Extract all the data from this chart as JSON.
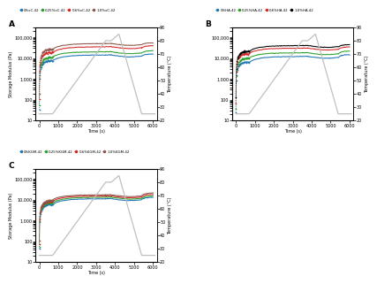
{
  "panels": [
    "A",
    "B",
    "C"
  ],
  "legend_A": [
    "0%xC-42",
    "0.25%xC-42",
    "0.6%xC-42",
    "1.0%xC-42"
  ],
  "legend_B": [
    "0%HA-42",
    "0.25%HA-42",
    "0.6%HA-42",
    "1.0%HA-42"
  ],
  "legend_C": [
    "0%KGM-42",
    "0.25%KGM-42",
    "0.6%KGM-42",
    "1.0%KGM-42"
  ],
  "colors_A": [
    "#1f77b4",
    "#2ca02c",
    "#d62728",
    "#8c564b"
  ],
  "colors_B": [
    "#1f77b4",
    "#2ca02c",
    "#d62728",
    "#000000"
  ],
  "colors_C": [
    "#1f77b4",
    "#2ca02c",
    "#d62728",
    "#8c564b"
  ],
  "temp_color": "#c0c0c0",
  "ylabel_left": "Storage Modulus (Pa)",
  "ylabel_right": "Temperature (°C)",
  "xlabel": "Time (s)",
  "ylim_log": [
    10,
    300000
  ],
  "ylim_temp": [
    20,
    90
  ],
  "xlim": [
    -200,
    6200
  ],
  "xticks": [
    0,
    1000,
    2000,
    3000,
    4000,
    5000,
    6000
  ],
  "yticks_temp": [
    20,
    30,
    40,
    50,
    60,
    70,
    80,
    90
  ],
  "temp_profile": {
    "x": [
      0,
      700,
      3500,
      3800,
      3800,
      4200,
      4200,
      5400,
      5500,
      6100
    ],
    "y": [
      25,
      25,
      80,
      80,
      80,
      85,
      85,
      25,
      25,
      25
    ]
  }
}
